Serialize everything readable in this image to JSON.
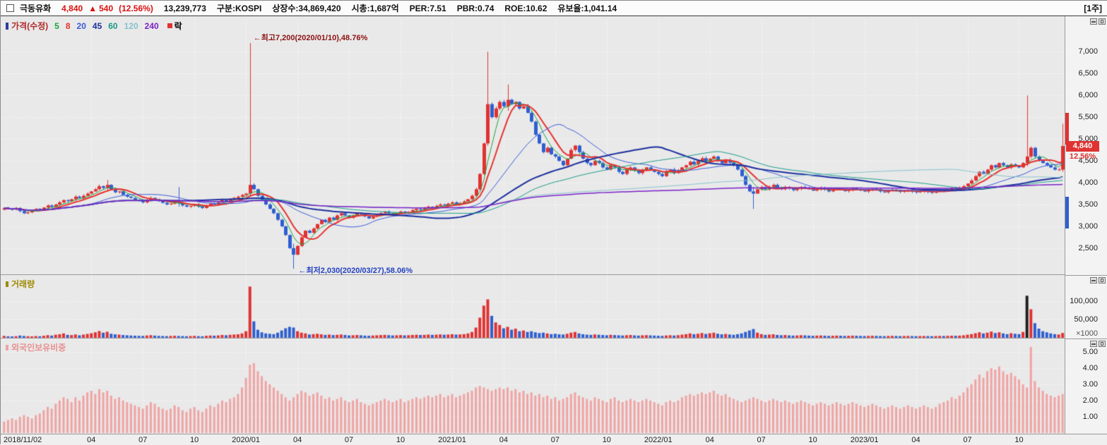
{
  "header": {
    "stock_name": "극동유화",
    "price": "4,840",
    "change_arrow": "▲",
    "change_value": "540",
    "change_percent": "(12.56%)",
    "volume": "13,239,773",
    "market_label": "구분:KOSPI",
    "shares_label": "상장수:34,869,420",
    "marketcap_label": "시총:1,687억",
    "per_label": "PER:7.51",
    "pbr_label": "PBR:0.74",
    "roe_label": "ROE:10.62",
    "reserve_label": "유보율:1,041.14",
    "period_label": "[1주]"
  },
  "price_panel": {
    "legend_title": "가격(수정)",
    "extra_legend": "락"
  },
  "volume_panel": {
    "legend_title": "거래량",
    "unit_label": "×1000"
  },
  "foreign_panel": {
    "legend_title": "외국인보유비중"
  },
  "chart_data": {
    "type": "candlestick",
    "period": "weekly",
    "ylim": [
      1900,
      7750
    ],
    "y_ticks": [
      {
        "v": 7000,
        "label": "7,000"
      },
      {
        "v": 6500,
        "label": "6,500"
      },
      {
        "v": 6000,
        "label": "6,000"
      },
      {
        "v": 5500,
        "label": "5,500"
      },
      {
        "v": 5000,
        "label": "5,000"
      },
      {
        "v": 4500,
        "label": "4,500"
      },
      {
        "v": 4000,
        "label": "4,000"
      },
      {
        "v": 3500,
        "label": "3,500"
      },
      {
        "v": 3000,
        "label": "3,000"
      },
      {
        "v": 2500,
        "label": "2,500"
      }
    ],
    "x_ticks": [
      {
        "week": 0,
        "label": "2018/11/02"
      },
      {
        "week": 22,
        "label": "04"
      },
      {
        "week": 35,
        "label": "07"
      },
      {
        "week": 48,
        "label": "10"
      },
      {
        "week": 61,
        "label": "2020/01"
      },
      {
        "week": 74,
        "label": "04"
      },
      {
        "week": 87,
        "label": "07"
      },
      {
        "week": 100,
        "label": "10"
      },
      {
        "week": 113,
        "label": "2021/01"
      },
      {
        "week": 126,
        "label": "04"
      },
      {
        "week": 139,
        "label": "07"
      },
      {
        "week": 152,
        "label": "10"
      },
      {
        "week": 165,
        "label": "2022/01"
      },
      {
        "week": 178,
        "label": "04"
      },
      {
        "week": 191,
        "label": "07"
      },
      {
        "week": 204,
        "label": "10"
      },
      {
        "week": 217,
        "label": "2023/01"
      },
      {
        "week": 230,
        "label": "04"
      },
      {
        "week": 243,
        "label": "07"
      },
      {
        "week": 256,
        "label": "10"
      }
    ],
    "closes": [
      3420,
      3400,
      3380,
      3420,
      3350,
      3300,
      3320,
      3360,
      3400,
      3380,
      3430,
      3480,
      3450,
      3500,
      3550,
      3600,
      3580,
      3620,
      3680,
      3650,
      3700,
      3750,
      3800,
      3850,
      3920,
      3880,
      3950,
      3850,
      3780,
      3800,
      3720,
      3680,
      3650,
      3600,
      3580,
      3550,
      3600,
      3650,
      3620,
      3580,
      3540,
      3500,
      3520,
      3560,
      3530,
      3480,
      3450,
      3470,
      3500,
      3450,
      3420,
      3480,
      3520,
      3500,
      3550,
      3600,
      3580,
      3620,
      3650,
      3680,
      3720,
      3750,
      3950,
      3850,
      3700,
      3600,
      3500,
      3400,
      3300,
      3150,
      3000,
      2800,
      2500,
      2350,
      2550,
      2750,
      2900,
      2850,
      2950,
      3050,
      3150,
      3100,
      3200,
      3150,
      3250,
      3300,
      3250,
      3200,
      3250,
      3300,
      3280,
      3230,
      3180,
      3220,
      3260,
      3300,
      3340,
      3300,
      3260,
      3300,
      3340,
      3300,
      3330,
      3370,
      3400,
      3380,
      3420,
      3450,
      3430,
      3470,
      3500,
      3480,
      3520,
      3550,
      3500,
      3530,
      3570,
      3620,
      3700,
      3850,
      4200,
      4900,
      5800,
      5500,
      5700,
      5850,
      5750,
      5900,
      5800,
      5850,
      5700,
      5750,
      5600,
      5400,
      5100,
      4900,
      4700,
      4800,
      4650,
      4600,
      4500,
      4400,
      4550,
      4750,
      4850,
      4700,
      4550,
      4450,
      4400,
      4500,
      4450,
      4350,
      4300,
      4400,
      4350,
      4250,
      4200,
      4300,
      4350,
      4280,
      4220,
      4300,
      4350,
      4300,
      4250,
      4200,
      4150,
      4250,
      4300,
      4220,
      4280,
      4350,
      4400,
      4480,
      4420,
      4500,
      4560,
      4480,
      4550,
      4600,
      4500,
      4450,
      4520,
      4460,
      4400,
      4300,
      4150,
      3950,
      3800,
      3750,
      3850,
      3900,
      3850,
      3900,
      3950,
      3880,
      3850,
      3900,
      3870,
      3830,
      3860,
      3900,
      3880,
      3850,
      3820,
      3850,
      3880,
      3840,
      3800,
      3830,
      3860,
      3840,
      3810,
      3840,
      3870,
      3850,
      3820,
      3800,
      3830,
      3860,
      3840,
      3800,
      3780,
      3810,
      3840,
      3820,
      3790,
      3810,
      3830,
      3800,
      3780,
      3800,
      3820,
      3790,
      3770,
      3800,
      3830,
      3810,
      3840,
      3870,
      3850,
      3880,
      3920,
      3980,
      4050,
      4150,
      4250,
      4200,
      4300,
      4400,
      4350,
      4450,
      4400,
      4350,
      4420,
      4380,
      4350,
      4450,
      4600,
      4800,
      4600,
      4500,
      4450,
      4400,
      4350,
      4300,
      4300,
      4840
    ],
    "wick_overrides": {
      "26": [
        4060,
        3790
      ],
      "44": [
        3900,
        3450
      ],
      "62": [
        7200,
        3680
      ],
      "73": [
        2600,
        2030
      ],
      "122": [
        7000,
        4850
      ],
      "127": [
        6250,
        5650
      ],
      "189": [
        3900,
        3400
      ],
      "258": [
        6000,
        4380
      ],
      "267": [
        5350,
        4250
      ]
    },
    "volume": [
      5200,
      4100,
      3800,
      4500,
      6200,
      5100,
      4300,
      3900,
      4800,
      4200,
      5600,
      7200,
      6100,
      8500,
      9800,
      12000,
      8200,
      7400,
      9100,
      6800,
      8800,
      10500,
      12500,
      15000,
      18500,
      14000,
      16500,
      11000,
      9500,
      8700,
      7600,
      6900,
      6200,
      5800,
      5400,
      5100,
      6300,
      7100,
      6000,
      5200,
      4800,
      4500,
      5100,
      5600,
      5000,
      4600,
      4200,
      4700,
      5300,
      4400,
      4100,
      5500,
      6200,
      5800,
      6500,
      7800,
      7000,
      8200,
      9000,
      9600,
      12000,
      18000,
      140000,
      45000,
      22000,
      15000,
      12000,
      11000,
      10000,
      14000,
      20000,
      26000,
      30000,
      28000,
      18000,
      14000,
      12000,
      9000,
      10000,
      11000,
      9500,
      8000,
      8800,
      7500,
      8200,
      9000,
      7800,
      6500,
      7000,
      7600,
      6800,
      6000,
      5500,
      6200,
      6800,
      7400,
      8000,
      7200,
      6400,
      6800,
      7400,
      6600,
      7000,
      7800,
      8400,
      7600,
      8000,
      8800,
      8000,
      8600,
      9200,
      8400,
      9000,
      9800,
      8800,
      9200,
      10000,
      12000,
      16000,
      28000,
      55000,
      88000,
      105000,
      60000,
      42000,
      35000,
      26000,
      30000,
      22000,
      25000,
      18000,
      20000,
      16000,
      18000,
      15000,
      13000,
      14000,
      12000,
      10000,
      11000,
      9500,
      9000,
      11000,
      14000,
      16000,
      12000,
      9800,
      8600,
      8000,
      9200,
      8400,
      7600,
      7000,
      8200,
      7400,
      6800,
      6200,
      7000,
      7600,
      6600,
      6000,
      6800,
      7200,
      6600,
      6100,
      5600,
      5200,
      6400,
      7000,
      6200,
      7200,
      8600,
      10000,
      12000,
      9800,
      11000,
      13000,
      10500,
      12500,
      14000,
      11000,
      9500,
      10500,
      9000,
      8200,
      9800,
      12000,
      16000,
      20000,
      24000,
      14000,
      10000,
      8000,
      8800,
      9600,
      7800,
      7000,
      7600,
      6600,
      6000,
      6400,
      7000,
      6600,
      6000,
      5500,
      6000,
      6400,
      5800,
      5200,
      5600,
      6000,
      5600,
      5100,
      5500,
      5900,
      5500,
      5100,
      4800,
      5200,
      5600,
      5200,
      4800,
      4500,
      4900,
      5300,
      5000,
      4600,
      4900,
      5100,
      4700,
      4500,
      4800,
      5000,
      4700,
      4400,
      4800,
      5200,
      5000,
      5400,
      5800,
      5500,
      6000,
      6800,
      8500,
      10000,
      12500,
      15000,
      12000,
      14000,
      17000,
      13000,
      15000,
      12000,
      10000,
      12500,
      11000,
      10000,
      16000,
      115000,
      78000,
      40000,
      25000,
      18000,
      15000,
      12000,
      10000,
      9000,
      13240
    ],
    "volume_scale_max": 160000,
    "volume_ticks": [
      {
        "v": 100000,
        "label": "100,000"
      },
      {
        "v": 50000,
        "label": "50,000"
      }
    ],
    "volume_color_overrides": {
      "258": "#1f1f1f"
    },
    "foreign": [
      0.7,
      0.8,
      0.9,
      0.8,
      1.0,
      1.1,
      1.0,
      0.9,
      1.1,
      1.2,
      1.4,
      1.6,
      1.5,
      1.8,
      2.0,
      2.2,
      2.1,
      1.9,
      2.2,
      2.0,
      2.3,
      2.5,
      2.6,
      2.4,
      2.7,
      2.5,
      2.6,
      2.3,
      2.1,
      2.2,
      2.0,
      1.9,
      1.8,
      1.7,
      1.6,
      1.5,
      1.7,
      1.9,
      1.8,
      1.6,
      1.5,
      1.4,
      1.5,
      1.7,
      1.6,
      1.4,
      1.3,
      1.5,
      1.6,
      1.4,
      1.3,
      1.5,
      1.7,
      1.6,
      1.8,
      2.0,
      1.9,
      2.1,
      2.2,
      2.4,
      2.8,
      3.4,
      4.2,
      4.3,
      3.8,
      3.5,
      3.2,
      3.0,
      2.8,
      2.6,
      2.4,
      2.2,
      2.0,
      2.2,
      2.4,
      2.6,
      2.5,
      2.3,
      2.4,
      2.5,
      2.3,
      2.1,
      2.2,
      2.0,
      2.1,
      2.2,
      2.0,
      1.9,
      2.0,
      2.1,
      1.9,
      1.8,
      1.7,
      1.8,
      1.9,
      2.0,
      2.1,
      2.0,
      1.9,
      2.0,
      2.1,
      1.9,
      2.0,
      2.1,
      2.2,
      2.1,
      2.2,
      2.3,
      2.2,
      2.3,
      2.4,
      2.2,
      2.3,
      2.4,
      2.2,
      2.3,
      2.4,
      2.5,
      2.6,
      2.8,
      2.9,
      2.8,
      2.7,
      2.6,
      2.7,
      2.8,
      2.7,
      2.8,
      2.6,
      2.7,
      2.5,
      2.6,
      2.4,
      2.5,
      2.3,
      2.4,
      2.2,
      2.3,
      2.1,
      2.2,
      2.0,
      2.1,
      2.2,
      2.4,
      2.5,
      2.3,
      2.2,
      2.1,
      2.0,
      2.2,
      2.1,
      2.0,
      1.9,
      2.1,
      2.2,
      2.0,
      1.9,
      2.0,
      2.1,
      2.0,
      1.9,
      2.0,
      2.1,
      2.0,
      1.9,
      1.8,
      1.7,
      1.9,
      2.0,
      1.9,
      2.0,
      2.2,
      2.3,
      2.4,
      2.3,
      2.4,
      2.5,
      2.4,
      2.5,
      2.6,
      2.4,
      2.3,
      2.4,
      2.2,
      2.1,
      2.0,
      1.9,
      2.0,
      2.1,
      2.2,
      2.1,
      2.0,
      1.9,
      2.0,
      2.1,
      2.0,
      1.9,
      2.0,
      1.9,
      1.8,
      1.9,
      2.0,
      1.9,
      1.8,
      1.7,
      1.8,
      1.9,
      1.8,
      1.7,
      1.8,
      1.9,
      1.8,
      1.7,
      1.8,
      1.9,
      1.8,
      1.7,
      1.6,
      1.7,
      1.8,
      1.7,
      1.6,
      1.5,
      1.6,
      1.7,
      1.6,
      1.5,
      1.6,
      1.7,
      1.6,
      1.5,
      1.6,
      1.7,
      1.6,
      1.5,
      1.6,
      1.8,
      1.9,
      2.0,
      2.2,
      2.1,
      2.3,
      2.5,
      2.8,
      3.0,
      3.3,
      3.6,
      3.4,
      3.8,
      4.0,
      3.9,
      4.1,
      3.8,
      3.6,
      3.7,
      3.5,
      3.3,
      3.0,
      2.8,
      5.3,
      3.2,
      2.8,
      2.6,
      2.4,
      2.3,
      2.2,
      2.3,
      2.4
    ],
    "foreign_scale_max": 5.6,
    "foreign_ticks": [
      {
        "v": 5,
        "label": "5.00"
      },
      {
        "v": 4,
        "label": "4.00"
      },
      {
        "v": 3,
        "label": "3.00"
      },
      {
        "v": 2,
        "label": "2.00"
      },
      {
        "v": 1,
        "label": "1.00"
      }
    ],
    "ma": [
      {
        "period": 5,
        "color": "#1ea33c",
        "width": 1
      },
      {
        "period": 8,
        "color": "#e83030",
        "width": 2
      },
      {
        "period": 20,
        "color": "#3a5bd8",
        "width": 1
      },
      {
        "period": 45,
        "color": "#1b2e9e",
        "width": 2
      },
      {
        "period": 60,
        "color": "#1a9a86",
        "width": 1
      },
      {
        "period": 120,
        "color": "#86c2cc",
        "width": 1
      },
      {
        "period": 240,
        "color": "#7a22c8",
        "width": 1.5
      }
    ],
    "colors": {
      "up": "#e03232",
      "down": "#2e5fd0",
      "foreign_bar": "#f0a3a3",
      "grid": "#ffffff"
    },
    "annotations": {
      "high": {
        "week": 62,
        "price": 7200,
        "text": "←최고7,200(2020/01/10),48.76%"
      },
      "low": {
        "week": 73,
        "price": 2030,
        "text": "←최저2,030(2020/03/27),58.06%"
      }
    },
    "current": {
      "price": 4840,
      "label": "4,840",
      "percent": "12.56%"
    },
    "range_bars": {
      "upper": [
        5600,
        4870
      ],
      "lower": [
        3680,
        2950
      ]
    }
  }
}
